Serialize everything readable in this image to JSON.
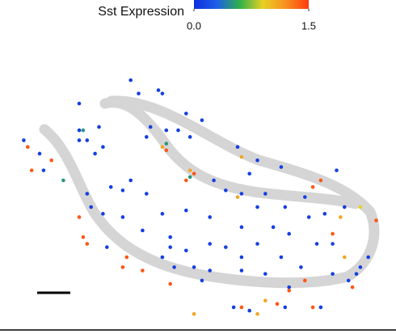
{
  "chart_data": {
    "type": "scatter",
    "colorbar_label": "Sst Expression",
    "clim": [
      0,
      1.5
    ],
    "cticks": [
      {
        "value": 0,
        "label": "0.0"
      },
      {
        "value": 1.5,
        "label": "1.5"
      }
    ],
    "colormap": [
      "#0d2fe0",
      "#1f5fe8",
      "#2fb04a",
      "#e8d024",
      "#f7901e",
      "#ff3a10"
    ],
    "xlim": [
      0,
      100
    ],
    "ylim": [
      0,
      100
    ],
    "x": [
      33,
      20,
      25,
      20,
      20,
      22,
      24,
      26,
      38,
      37,
      42,
      45,
      48,
      47,
      51,
      60,
      65,
      71,
      63,
      54,
      57,
      61,
      67,
      65,
      72,
      77,
      78,
      82,
      84,
      80,
      73,
      69,
      61,
      53,
      47,
      41,
      37,
      31,
      33,
      28,
      22,
      23,
      26,
      31,
      36,
      43,
      44,
      41,
      47,
      53,
      57,
      61,
      65,
      71,
      76,
      84,
      90,
      91,
      93,
      81,
      73,
      67,
      61,
      51,
      53,
      49,
      6,
      10,
      11,
      35,
      41,
      40,
      85,
      87,
      88,
      63,
      59,
      72,
      43,
      27,
      7,
      13,
      20,
      21,
      22,
      32,
      36,
      43,
      49,
      79,
      47,
      42,
      77,
      73,
      79,
      95,
      84,
      61,
      70,
      8,
      89,
      81,
      31,
      41,
      48,
      60,
      86,
      67,
      87,
      61,
      49,
      65,
      21,
      16,
      42,
      48,
      91
    ],
    "y": [
      76,
      69,
      62,
      61,
      58,
      58,
      54,
      56,
      62,
      59,
      61,
      61,
      59,
      66,
      64,
      56,
      52,
      50,
      48,
      46,
      43,
      42,
      42,
      38,
      38,
      41,
      35,
      36,
      27,
      27,
      30,
      32,
      32,
      35,
      37,
      36,
      42,
      43,
      46,
      44,
      42,
      38,
      36,
      35,
      31,
      29,
      20,
      23,
      25,
      27,
      26,
      23,
      27,
      23,
      20,
      18,
      18,
      20,
      23,
      8,
      14,
      18,
      19,
      16,
      19,
      20,
      58,
      54,
      49,
      72,
      72,
      73,
      49,
      38,
      16,
      7,
      8,
      8,
      26,
      26,
      56,
      52,
      35,
      29,
      27,
      23,
      19,
      15,
      48,
      44,
      46,
      55,
      16,
      13,
      8,
      34,
      30,
      8,
      9,
      49,
      14,
      46,
      20,
      56,
      49,
      41,
      35,
      10,
      23,
      53,
      6,
      6,
      61,
      46,
      57,
      47,
      38
    ],
    "values": [
      0.1,
      0.1,
      0.1,
      0.1,
      0.1,
      0.1,
      0.1,
      0.1,
      0.1,
      0.1,
      0.1,
      0.1,
      0.1,
      0.1,
      0.1,
      0.1,
      0.1,
      0.1,
      0.1,
      0.1,
      0.1,
      0.1,
      0.1,
      0.1,
      0.1,
      0.1,
      0.1,
      0.1,
      0.1,
      0.1,
      0.1,
      0.1,
      0.1,
      0.1,
      0.1,
      0.1,
      0.1,
      0.1,
      0.1,
      0.1,
      0.1,
      0.1,
      0.1,
      0.1,
      0.1,
      0.1,
      0.1,
      0.1,
      0.1,
      0.1,
      0.1,
      0.1,
      0.1,
      0.1,
      0.1,
      0.1,
      0.1,
      0.1,
      0.1,
      0.1,
      0.1,
      0.1,
      0.1,
      0.1,
      0.1,
      0.1,
      0.1,
      0.1,
      0.1,
      0.1,
      0.1,
      0.1,
      0.1,
      0.1,
      0.1,
      0.1,
      0.1,
      0.1,
      0.1,
      0.1,
      1.4,
      1.4,
      1.4,
      1.4,
      1.4,
      1.4,
      1.4,
      1.4,
      1.4,
      1.4,
      1.4,
      1.4,
      1.4,
      1.4,
      1.4,
      1.4,
      1.4,
      1.4,
      1.4,
      1.4,
      1.4,
      1.4,
      1.4,
      1.1,
      1.1,
      1.1,
      1.1,
      1.1,
      1.1,
      1.1,
      1.1,
      1.1,
      0.5,
      0.5,
      0.5,
      0.5,
      0.9
    ]
  }
}
